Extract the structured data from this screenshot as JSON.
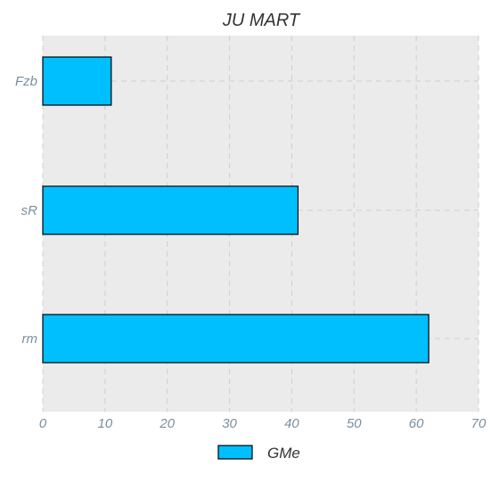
{
  "chart_data": {
    "type": "bar",
    "orientation": "horizontal",
    "title": "JU MART",
    "categories": [
      "Fzb",
      "sR",
      "rm"
    ],
    "series": [
      {
        "name": "GMe",
        "values": [
          11,
          41,
          62
        ],
        "color": "#00bfff"
      }
    ],
    "xlim": [
      0,
      70
    ],
    "xticks": [
      0,
      10,
      20,
      30,
      40,
      50,
      60,
      70
    ],
    "grid": true,
    "legend_position": "bottom-center",
    "background_color": "#ebebeb"
  }
}
